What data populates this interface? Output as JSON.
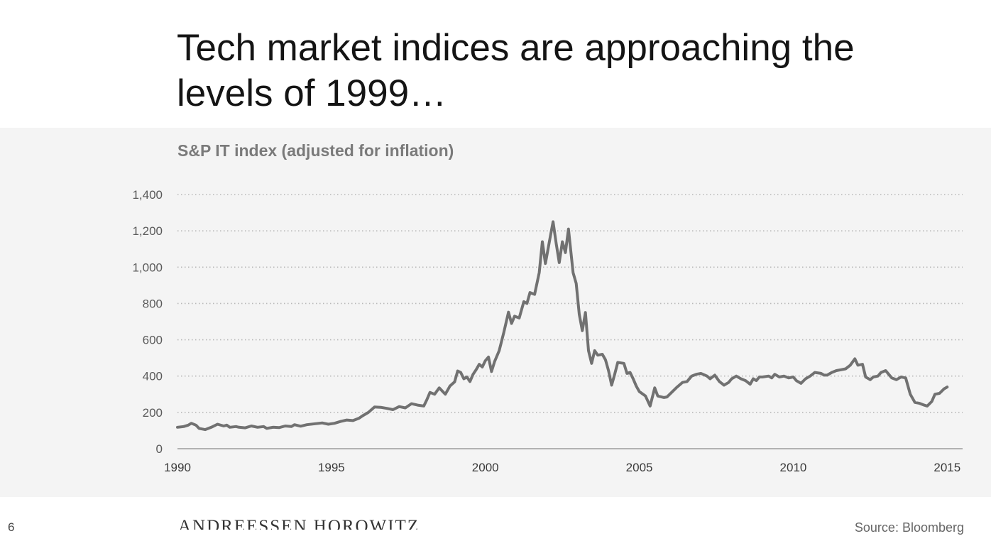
{
  "slide": {
    "headline": "Tech market indices are approaching the levels of 1999…",
    "page_number": "6",
    "logo_text": "ANDREESSEN HOROWITZ",
    "source": "Source: Bloomberg"
  },
  "colors": {
    "line": "#717171",
    "grid": "#b8b8b8",
    "axis": "#8a8a8a",
    "panel": "#f4f4f4"
  },
  "chart_data": {
    "type": "line",
    "title": "S&P IT index (adjusted for inflation)",
    "xlabel": "",
    "ylabel": "",
    "xlim": [
      1990,
      2015.5
    ],
    "ylim": [
      0,
      1400
    ],
    "x_ticks": [
      1990,
      1995,
      2000,
      2005,
      2010,
      2015
    ],
    "y_ticks": [
      0,
      200,
      400,
      600,
      800,
      1000,
      1200,
      1400
    ],
    "y_tick_labels": [
      "0",
      "200",
      "400",
      "600",
      "800",
      "1,000",
      "1,200",
      "1,400"
    ],
    "grid": "horizontal-dotted",
    "series": [
      {
        "name": "S&P IT index (real)",
        "points": [
          [
            1990.0,
            118
          ],
          [
            1990.2,
            122
          ],
          [
            1990.35,
            130
          ],
          [
            1990.45,
            140
          ],
          [
            1990.6,
            130
          ],
          [
            1990.7,
            112
          ],
          [
            1990.9,
            105
          ],
          [
            1991.1,
            118
          ],
          [
            1991.3,
            135
          ],
          [
            1991.5,
            125
          ],
          [
            1991.6,
            130
          ],
          [
            1991.7,
            118
          ],
          [
            1991.9,
            122
          ],
          [
            1992.0,
            118
          ],
          [
            1992.2,
            115
          ],
          [
            1992.4,
            125
          ],
          [
            1992.6,
            118
          ],
          [
            1992.8,
            122
          ],
          [
            1992.9,
            112
          ],
          [
            1993.1,
            118
          ],
          [
            1993.3,
            116
          ],
          [
            1993.5,
            125
          ],
          [
            1993.7,
            122
          ],
          [
            1993.8,
            132
          ],
          [
            1994.0,
            124
          ],
          [
            1994.2,
            132
          ],
          [
            1994.5,
            138
          ],
          [
            1994.7,
            142
          ],
          [
            1994.9,
            135
          ],
          [
            1995.1,
            140
          ],
          [
            1995.3,
            150
          ],
          [
            1995.5,
            158
          ],
          [
            1995.7,
            155
          ],
          [
            1995.9,
            168
          ],
          [
            1996.0,
            180
          ],
          [
            1996.2,
            200
          ],
          [
            1996.4,
            230
          ],
          [
            1996.6,
            228
          ],
          [
            1996.8,
            222
          ],
          [
            1997.0,
            215
          ],
          [
            1997.2,
            232
          ],
          [
            1997.4,
            225
          ],
          [
            1997.6,
            248
          ],
          [
            1997.8,
            240
          ],
          [
            1998.0,
            235
          ],
          [
            1998.1,
            270
          ],
          [
            1998.2,
            310
          ],
          [
            1998.35,
            300
          ],
          [
            1998.5,
            335
          ],
          [
            1998.7,
            300
          ],
          [
            1998.85,
            345
          ],
          [
            1999.0,
            368
          ],
          [
            1999.1,
            428
          ],
          [
            1999.2,
            420
          ],
          [
            1999.3,
            385
          ],
          [
            1999.4,
            395
          ],
          [
            1999.5,
            370
          ],
          [
            1999.6,
            410
          ],
          [
            1999.7,
            435
          ],
          [
            1999.8,
            465
          ],
          [
            1999.9,
            450
          ],
          [
            2000.0,
            485
          ],
          [
            2000.1,
            505
          ],
          [
            2000.2,
            425
          ],
          [
            2000.3,
            480
          ],
          [
            2000.45,
            540
          ],
          [
            2000.6,
            640
          ],
          [
            2000.75,
            752
          ],
          [
            2000.85,
            690
          ],
          [
            2000.95,
            730
          ],
          [
            2001.1,
            720
          ],
          [
            2001.25,
            810
          ],
          [
            2001.35,
            800
          ],
          [
            2001.45,
            860
          ],
          [
            2001.6,
            850
          ],
          [
            2001.75,
            970
          ],
          [
            2001.85,
            1140
          ],
          [
            2001.95,
            1020
          ],
          [
            2002.1,
            1160
          ],
          [
            2002.2,
            1250
          ],
          [
            2002.3,
            1130
          ],
          [
            2002.4,
            1025
          ],
          [
            2002.5,
            1140
          ],
          [
            2002.6,
            1080
          ],
          [
            2002.7,
            1210
          ],
          [
            2002.85,
            970
          ],
          [
            2002.95,
            910
          ],
          [
            2003.05,
            740
          ],
          [
            2003.15,
            650
          ],
          [
            2003.25,
            750
          ],
          [
            2003.35,
            540
          ],
          [
            2003.45,
            470
          ],
          [
            2003.55,
            540
          ],
          [
            2003.65,
            515
          ],
          [
            2003.8,
            520
          ],
          [
            2003.9,
            490
          ],
          [
            2004.0,
            430
          ],
          [
            2004.1,
            350
          ],
          [
            2004.2,
            410
          ],
          [
            2004.3,
            475
          ],
          [
            2004.5,
            470
          ],
          [
            2004.6,
            415
          ],
          [
            2004.7,
            420
          ],
          [
            2004.8,
            385
          ],
          [
            2004.9,
            345
          ],
          [
            2005.0,
            315
          ],
          [
            2005.2,
            290
          ],
          [
            2005.35,
            235
          ],
          [
            2005.5,
            335
          ],
          [
            2005.6,
            290
          ],
          [
            2005.8,
            282
          ],
          [
            2005.9,
            285
          ],
          [
            2006.05,
            310
          ],
          [
            2006.2,
            335
          ],
          [
            2006.4,
            365
          ],
          [
            2006.55,
            370
          ],
          [
            2006.7,
            400
          ],
          [
            2006.85,
            410
          ],
          [
            2007.0,
            415
          ],
          [
            2007.2,
            400
          ],
          [
            2007.3,
            385
          ],
          [
            2007.45,
            405
          ],
          [
            2007.6,
            370
          ],
          [
            2007.75,
            350
          ],
          [
            2007.9,
            365
          ],
          [
            2008.0,
            385
          ],
          [
            2008.15,
            400
          ],
          [
            2008.3,
            385
          ],
          [
            2008.45,
            375
          ],
          [
            2008.6,
            355
          ],
          [
            2008.7,
            385
          ],
          [
            2008.8,
            375
          ],
          [
            2008.9,
            395
          ],
          [
            2009.0,
            395
          ],
          [
            2009.2,
            400
          ],
          [
            2009.3,
            390
          ],
          [
            2009.4,
            410
          ],
          [
            2009.55,
            395
          ],
          [
            2009.7,
            400
          ],
          [
            2009.85,
            390
          ],
          [
            2010.0,
            395
          ],
          [
            2010.1,
            375
          ],
          [
            2010.25,
            360
          ],
          [
            2010.4,
            385
          ],
          [
            2010.55,
            400
          ],
          [
            2010.7,
            420
          ],
          [
            2010.9,
            415
          ],
          [
            2011.0,
            405
          ],
          [
            2011.1,
            405
          ],
          [
            2011.25,
            420
          ],
          [
            2011.4,
            430
          ],
          [
            2011.55,
            435
          ],
          [
            2011.7,
            440
          ],
          [
            2011.85,
            460
          ],
          [
            2012.0,
            495
          ],
          [
            2012.1,
            460
          ],
          [
            2012.25,
            465
          ],
          [
            2012.35,
            395
          ],
          [
            2012.5,
            380
          ],
          [
            2012.6,
            395
          ],
          [
            2012.75,
            400
          ],
          [
            2012.85,
            420
          ],
          [
            2013.0,
            430
          ],
          [
            2013.1,
            410
          ],
          [
            2013.2,
            390
          ],
          [
            2013.35,
            380
          ],
          [
            2013.5,
            395
          ],
          [
            2013.65,
            390
          ],
          [
            2013.8,
            300
          ],
          [
            2013.95,
            255
          ],
          [
            2014.1,
            250
          ],
          [
            2014.25,
            240
          ],
          [
            2014.35,
            235
          ],
          [
            2014.5,
            260
          ],
          [
            2014.6,
            300
          ],
          [
            2014.75,
            305
          ],
          [
            2014.9,
            330
          ],
          [
            2015.0,
            340
          ]
        ]
      }
    ]
  }
}
